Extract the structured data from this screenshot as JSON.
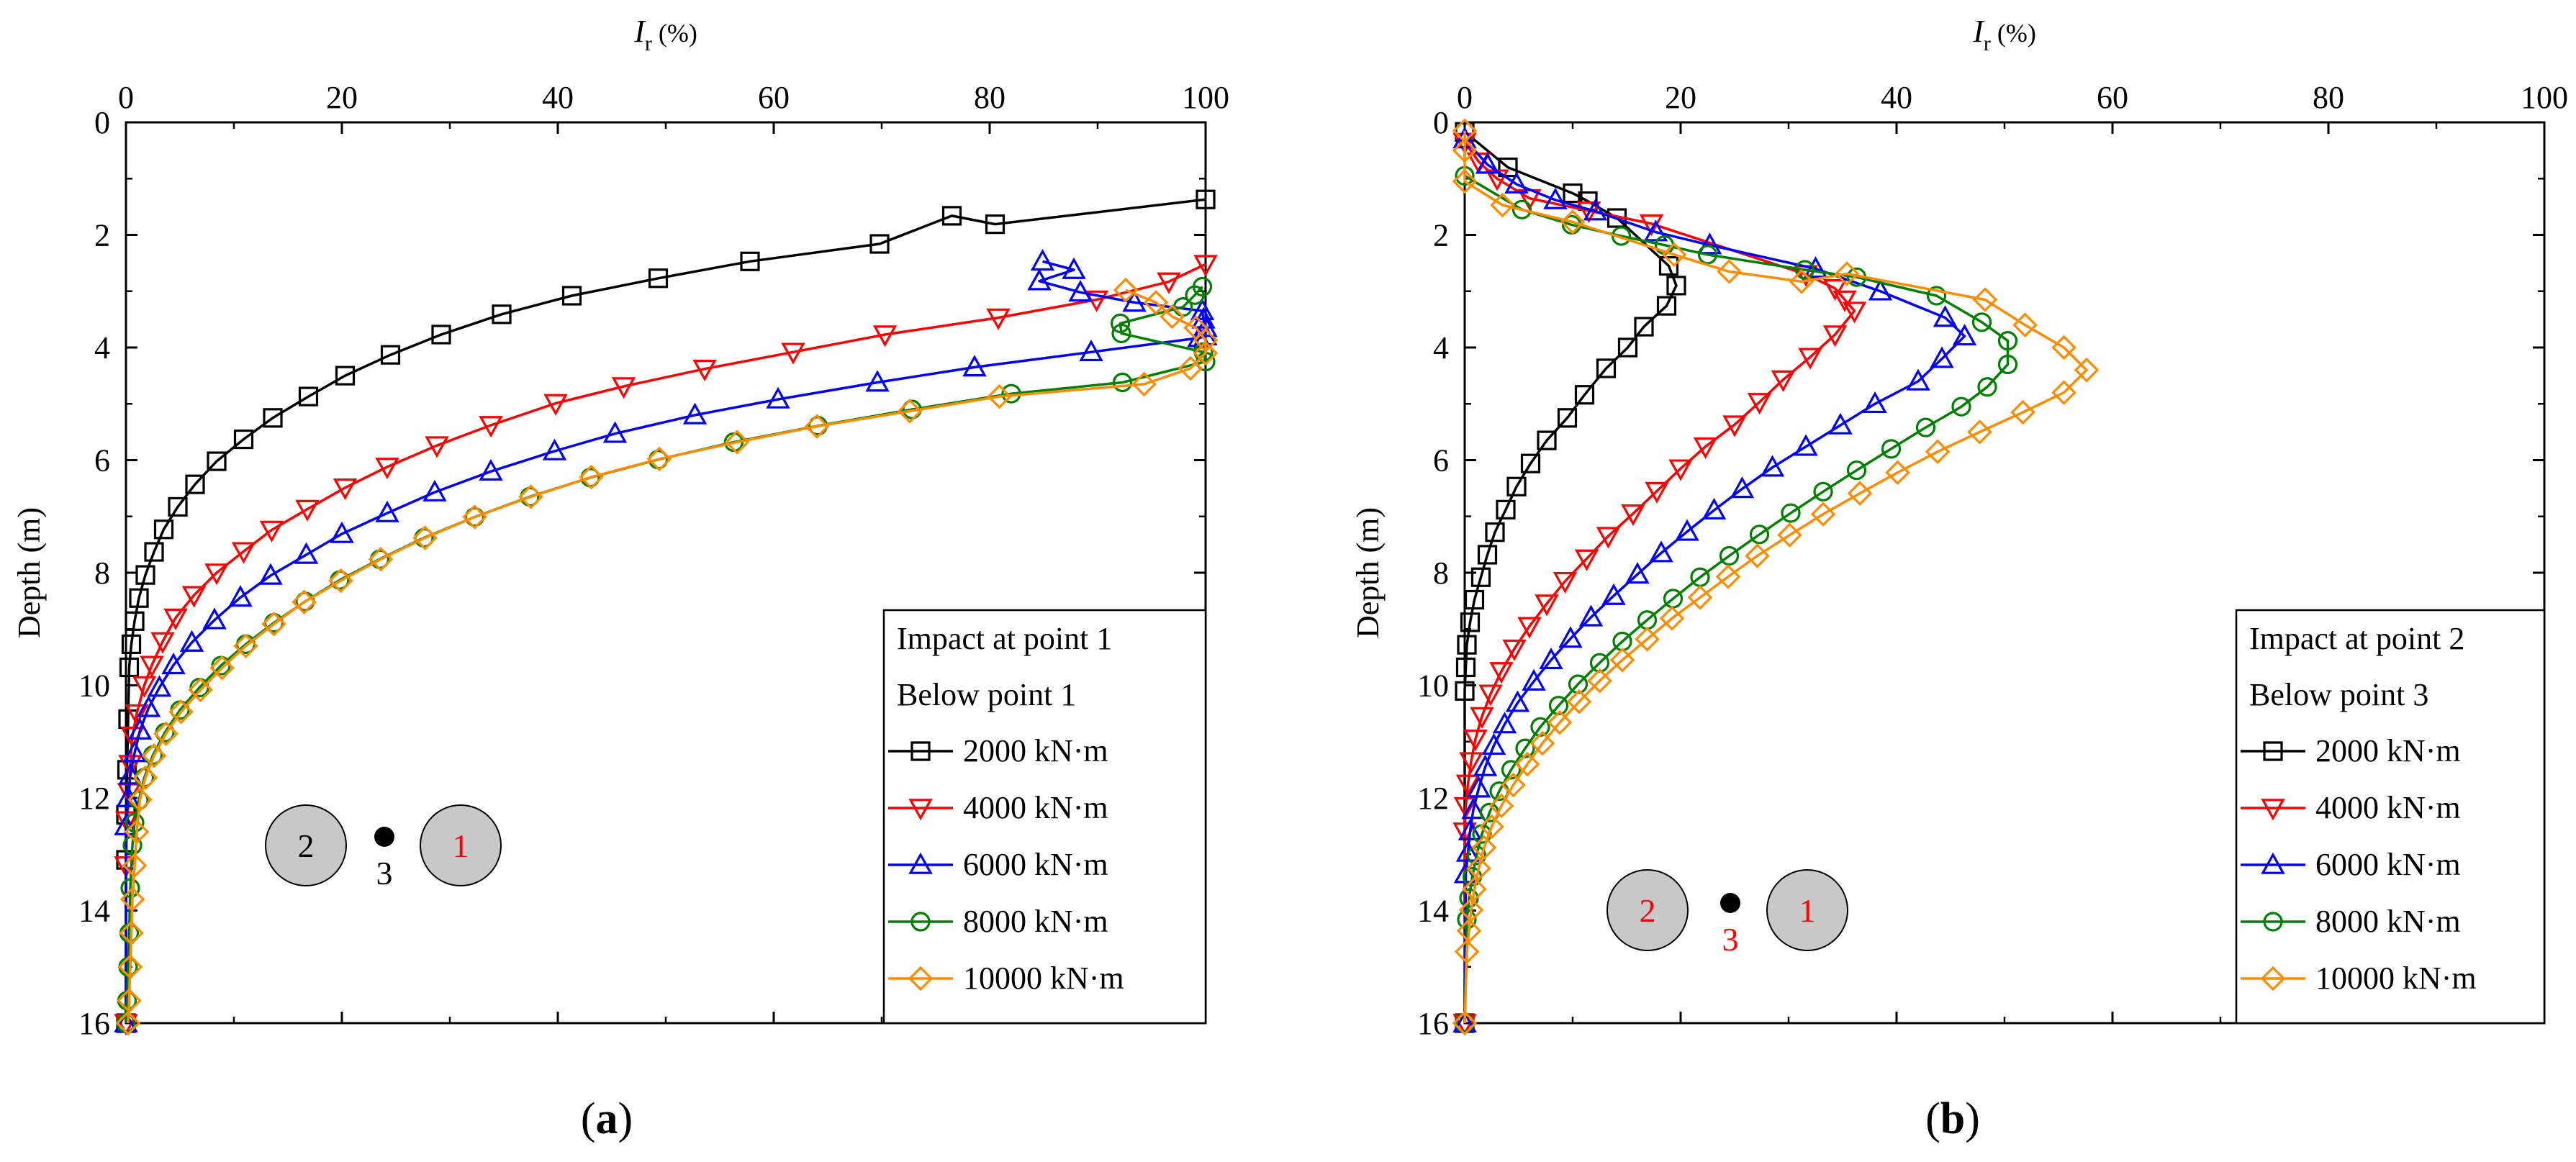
{
  "colors": {
    "2000": "#000000",
    "4000": "#ff0000",
    "6000": "#0000ff",
    "8000": "#008000",
    "10000": "#ff8c00",
    "pile_fill": "#c8c8c8",
    "red_text": "#ff0000"
  },
  "chart_data": [
    {
      "type": "line",
      "panel": "(a)",
      "panel_letter": "a",
      "xlabel_main": "I",
      "xlabel_sub": "r",
      "xlabel_unit": " (%)",
      "ylabel": "Depth (m)",
      "xlim": [
        0,
        100
      ],
      "ylim": [
        0,
        16
      ],
      "y_inverted": true,
      "x_ticks": [
        0,
        20,
        40,
        60,
        80,
        100
      ],
      "y_ticks": [
        0,
        2,
        4,
        6,
        8,
        10,
        12,
        14,
        16
      ],
      "legend_title_1": "Impact at point 1",
      "legend_title_2": "Below point 1",
      "legend_location": "bottom-right",
      "inset": {
        "left_label": "2",
        "dot_label": "3",
        "right_label": "1",
        "left_label_red": false,
        "dot_label_red": false,
        "right_label_red": true
      },
      "series": [
        {
          "name": "2000 kN·m",
          "key": "2000",
          "marker": "square",
          "x": [
            100,
            80.5,
            76.5,
            69.8,
            57.8,
            49.3,
            41.3,
            34.8,
            29.2,
            24.5,
            20.3,
            16.9,
            13.6,
            10.9,
            8.4,
            6.4,
            4.8,
            3.5,
            2.6,
            1.8,
            1.2,
            0.8,
            0.5,
            0.3,
            0.2,
            0.1,
            0,
            0,
            0
          ],
          "y": [
            1.37,
            1.81,
            1.66,
            2.16,
            2.47,
            2.77,
            3.08,
            3.41,
            3.77,
            4.13,
            4.5,
            4.87,
            5.25,
            5.63,
            6.02,
            6.43,
            6.83,
            7.23,
            7.63,
            8.04,
            8.45,
            8.86,
            9.27,
            9.68,
            10.6,
            11.5,
            12.3,
            13.1,
            16.0
          ]
        },
        {
          "name": "4000 kN·m",
          "key": "4000",
          "marker": "tri-down",
          "x": [
            100,
            96.6,
            89.9,
            80.8,
            70.3,
            61.8,
            53.6,
            46.1,
            39.8,
            33.8,
            28.8,
            24.2,
            20.3,
            16.8,
            13.5,
            10.9,
            8.4,
            6.3,
            4.6,
            3.4,
            2.4,
            1.7,
            1.0,
            0.6,
            0.4,
            0.3,
            0.1,
            0,
            0
          ],
          "y": [
            2.52,
            2.83,
            3.15,
            3.47,
            3.77,
            4.08,
            4.38,
            4.69,
            4.99,
            5.38,
            5.74,
            6.12,
            6.49,
            6.87,
            7.24,
            7.62,
            8.0,
            8.4,
            8.8,
            9.22,
            9.64,
            10.0,
            10.5,
            10.9,
            11.4,
            11.9,
            12.4,
            13.2,
            16.0
          ]
        },
        {
          "name": "6000 kN·m",
          "key": "6000",
          "marker": "tri-up",
          "x": [
            84.9,
            87.8,
            84.6,
            88.4,
            93.4,
            99.7,
            99.8,
            100,
            100,
            99.4,
            89.4,
            78.6,
            69.6,
            60.4,
            52.7,
            45.3,
            39.7,
            33.8,
            28.6,
            24.2,
            20.0,
            16.7,
            13.4,
            10.6,
            8.2,
            6.1,
            4.4,
            3.1,
            2.1,
            1.3,
            0.8,
            0.4,
            0.2,
            0,
            0
          ],
          "y": [
            2.47,
            2.62,
            2.82,
            3.02,
            3.2,
            3.35,
            3.5,
            3.65,
            3.8,
            3.83,
            4.08,
            4.35,
            4.62,
            4.92,
            5.2,
            5.53,
            5.84,
            6.2,
            6.57,
            6.94,
            7.31,
            7.68,
            8.05,
            8.44,
            8.84,
            9.24,
            9.64,
            10.04,
            10.4,
            10.8,
            11.2,
            11.6,
            12.0,
            12.5,
            16.0
          ]
        },
        {
          "name": "8000 kN·m",
          "key": "8000",
          "marker": "circle",
          "x": [
            99.7,
            99.0,
            97.9,
            92.1,
            92.2,
            99.8,
            100,
            92.3,
            82.0,
            72.8,
            64.1,
            56.3,
            49.3,
            43.0,
            37.4,
            32.3,
            27.6,
            23.5,
            19.8,
            16.6,
            13.7,
            11.1,
            8.8,
            6.8,
            5.0,
            3.6,
            2.5,
            1.7,
            1.2,
            0.8,
            0.6,
            0.4,
            0.3,
            0.2,
            0.1,
            0
          ],
          "y": [
            2.92,
            3.07,
            3.28,
            3.57,
            3.75,
            4.08,
            4.25,
            4.62,
            4.82,
            5.1,
            5.39,
            5.68,
            5.99,
            6.31,
            6.65,
            7.01,
            7.38,
            7.76,
            8.13,
            8.51,
            8.89,
            9.27,
            9.65,
            10.04,
            10.44,
            10.84,
            11.24,
            11.64,
            12.04,
            12.44,
            12.84,
            13.6,
            14.4,
            15.0,
            15.6,
            16.0
          ]
        },
        {
          "name": "10000 kN·m",
          "key": "10000",
          "marker": "diamond",
          "x": [
            92.6,
            95.4,
            96.9,
            99.1,
            100,
            100,
            98.6,
            94.3,
            80.9,
            72.6,
            64.0,
            56.6,
            49.4,
            43.1,
            37.5,
            32.3,
            27.7,
            23.6,
            19.9,
            16.5,
            13.7,
            11.1,
            8.9,
            6.9,
            5.1,
            3.7,
            2.6,
            1.8,
            1.3,
            1.0,
            0.8,
            0.6,
            0.5,
            0.4,
            0.3,
            0.2
          ],
          "y": [
            2.98,
            3.2,
            3.45,
            3.65,
            3.87,
            4.1,
            4.37,
            4.65,
            4.87,
            5.13,
            5.4,
            5.68,
            5.98,
            6.3,
            6.65,
            7.01,
            7.38,
            7.76,
            8.14,
            8.52,
            8.91,
            9.3,
            9.69,
            10.08,
            10.47,
            10.86,
            11.25,
            11.64,
            12.03,
            12.6,
            13.2,
            13.8,
            14.4,
            15.0,
            15.6,
            16.0
          ]
        }
      ]
    },
    {
      "type": "line",
      "panel": "(b)",
      "panel_letter": "b",
      "xlabel_main": "I",
      "xlabel_sub": "r",
      "xlabel_unit": " (%)",
      "ylabel": "Depth (m)",
      "xlim": [
        0,
        100
      ],
      "ylim": [
        0,
        16
      ],
      "y_inverted": true,
      "x_ticks": [
        0,
        20,
        40,
        60,
        80,
        100
      ],
      "y_ticks": [
        0,
        2,
        4,
        6,
        8,
        10,
        12,
        14,
        16
      ],
      "legend_title_1": "Impact at point 2",
      "legend_title_2": "Below point 3",
      "legend_location": "bottom-right",
      "inset": {
        "left_label": "2",
        "dot_label": "3",
        "right_label": "1",
        "left_label_red": true,
        "dot_label_red": true,
        "right_label_red": true
      },
      "series": [
        {
          "name": "2000 kN·m",
          "key": "2000",
          "marker": "square",
          "x": [
            0,
            4.0,
            10.0,
            11.4,
            14.1,
            18.9,
            19.6,
            18.7,
            16.6,
            15.1,
            13.1,
            11.1,
            9.5,
            7.6,
            6.1,
            4.8,
            3.8,
            2.8,
            2.1,
            1.5,
            0.9,
            0.5,
            0.2,
            0.1,
            0,
            0
          ],
          "y": [
            0.17,
            0.8,
            1.26,
            1.4,
            1.7,
            2.55,
            2.9,
            3.26,
            3.63,
            4.0,
            4.37,
            4.84,
            5.25,
            5.65,
            6.06,
            6.47,
            6.88,
            7.28,
            7.68,
            8.08,
            8.48,
            8.88,
            9.28,
            9.68,
            10.1,
            16.0
          ]
        },
        {
          "name": "4000 kN·m",
          "key": "4000",
          "marker": "tri-down",
          "x": [
            0,
            1.3,
            3.0,
            6.0,
            11.5,
            17.3,
            31.6,
            34.3,
            35.2,
            36.1,
            34.3,
            32.0,
            29.5,
            27.3,
            25.0,
            22.3,
            20.0,
            17.8,
            15.6,
            13.3,
            11.3,
            9.3,
            7.6,
            6.0,
            4.6,
            3.4,
            2.4,
            1.6,
            1.0,
            0.6,
            0.3,
            0.1,
            0,
            0
          ],
          "y": [
            0.35,
            0.7,
            1.0,
            1.35,
            1.57,
            1.8,
            2.7,
            2.95,
            3.15,
            3.35,
            3.77,
            4.17,
            4.57,
            4.97,
            5.37,
            5.76,
            6.15,
            6.55,
            6.95,
            7.35,
            7.75,
            8.15,
            8.55,
            8.95,
            9.35,
            9.75,
            10.15,
            10.55,
            10.95,
            11.35,
            11.75,
            12.15,
            12.6,
            16.0
          ]
        },
        {
          "name": "6000 kN·m",
          "key": "6000",
          "marker": "tri-up",
          "x": [
            0,
            2.1,
            4.8,
            8.4,
            12.1,
            17.7,
            22.7,
            32.5,
            38.5,
            44.5,
            46.3,
            44.2,
            42.0,
            38.0,
            34.8,
            31.6,
            28.5,
            25.7,
            23.1,
            20.6,
            18.2,
            16.0,
            13.8,
            11.7,
            9.8,
            8.0,
            6.4,
            4.9,
            3.7,
            2.7,
            1.9,
            1.3,
            0.8,
            0.5,
            0.3,
            0.1,
            0
          ],
          "y": [
            0.3,
            0.75,
            1.1,
            1.38,
            1.58,
            1.95,
            2.18,
            2.6,
            3.0,
            3.47,
            3.8,
            4.2,
            4.6,
            5.0,
            5.38,
            5.76,
            6.13,
            6.51,
            6.89,
            7.27,
            7.65,
            8.03,
            8.41,
            8.79,
            9.17,
            9.55,
            9.93,
            10.31,
            10.69,
            11.07,
            11.45,
            11.83,
            12.21,
            12.59,
            12.97,
            13.35,
            16.0
          ]
        },
        {
          "name": "8000 kN·m",
          "key": "8000",
          "marker": "circle",
          "x": [
            0,
            5.3,
            9.9,
            14.5,
            18.5,
            22.5,
            31.5,
            36.3,
            43.7,
            47.9,
            50.3,
            50.3,
            48.4,
            46.0,
            42.7,
            39.5,
            36.3,
            33.2,
            30.2,
            27.3,
            24.5,
            21.8,
            19.3,
            16.9,
            14.6,
            12.5,
            10.5,
            8.7,
            7.0,
            5.6,
            4.3,
            3.2,
            2.3,
            1.6,
            1.1,
            0.7,
            0.4,
            0.2,
            0
          ],
          "y": [
            0.95,
            1.55,
            1.82,
            2.02,
            2.18,
            2.35,
            2.62,
            2.75,
            3.08,
            3.55,
            3.88,
            4.3,
            4.7,
            5.05,
            5.42,
            5.8,
            6.18,
            6.56,
            6.94,
            7.32,
            7.7,
            8.08,
            8.46,
            8.84,
            9.22,
            9.6,
            9.98,
            10.36,
            10.74,
            11.12,
            11.5,
            11.88,
            12.26,
            12.64,
            13.02,
            13.4,
            13.78,
            14.16,
            16.0
          ]
        },
        {
          "name": "10000 kN·m",
          "key": "10000",
          "marker": "diamond",
          "x": [
            0,
            0,
            0,
            3.5,
            10.0,
            19.4,
            24.5,
            31.2,
            35.4,
            48.2,
            51.9,
            55.5,
            57.6,
            55.5,
            51.7,
            47.7,
            43.8,
            40.1,
            36.6,
            33.2,
            30.1,
            27.1,
            24.4,
            21.8,
            19.2,
            16.9,
            14.6,
            12.5,
            10.6,
            8.8,
            7.2,
            5.8,
            4.5,
            3.4,
            2.5,
            1.8,
            1.3,
            0.9,
            0.6,
            0.4,
            0.2,
            0
          ],
          "y": [
            0.15,
            0.5,
            1.05,
            1.47,
            1.77,
            2.35,
            2.65,
            2.83,
            2.69,
            3.15,
            3.6,
            4.0,
            4.4,
            4.8,
            5.15,
            5.5,
            5.85,
            6.22,
            6.59,
            6.96,
            7.33,
            7.7,
            8.07,
            8.44,
            8.81,
            9.18,
            9.55,
            9.92,
            10.29,
            10.66,
            11.03,
            11.4,
            11.77,
            12.14,
            12.51,
            12.88,
            13.25,
            13.62,
            13.99,
            14.36,
            14.73,
            16.0
          ]
        }
      ]
    }
  ]
}
